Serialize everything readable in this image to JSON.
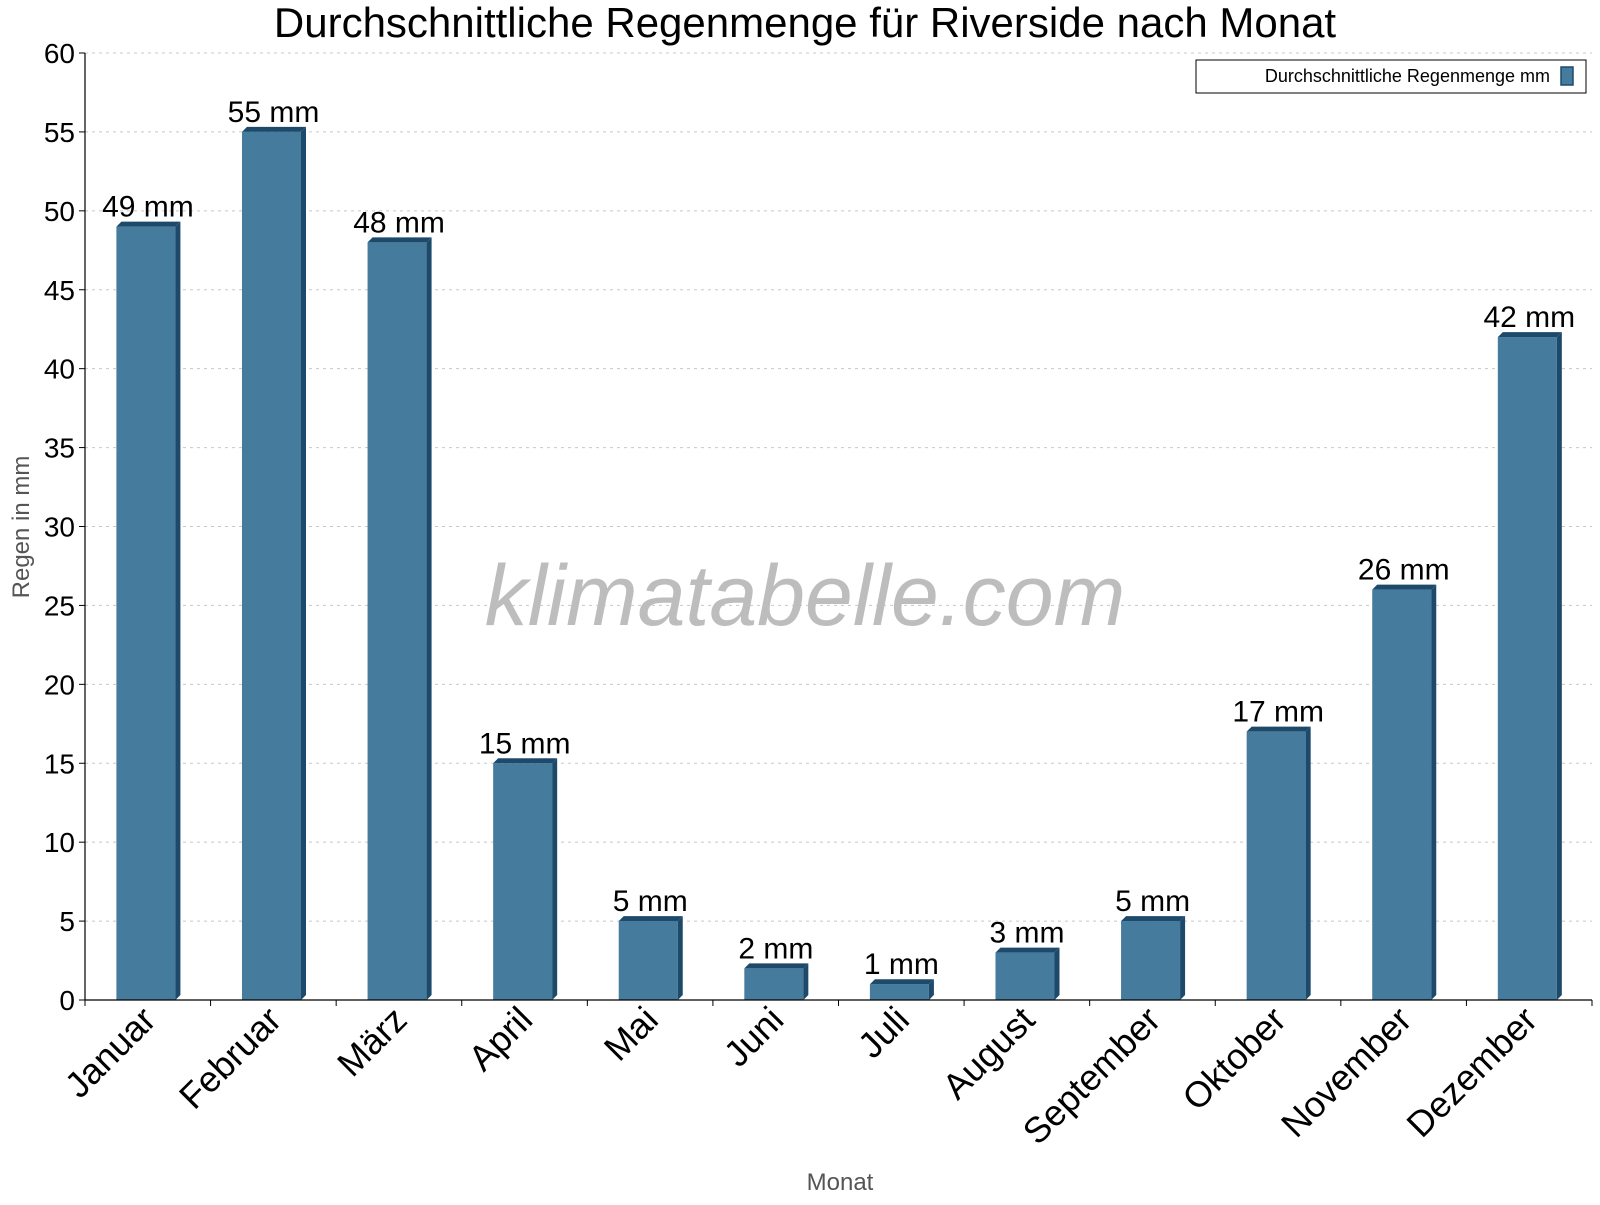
{
  "chart_data": {
    "type": "bar",
    "title": "Durchschnittliche Regenmenge für Riverside nach Monat",
    "xlabel": "Monat",
    "ylabel": "Regen in mm",
    "categories": [
      "Januar",
      "Februar",
      "März",
      "April",
      "Mai",
      "Juni",
      "Juli",
      "August",
      "September",
      "Oktober",
      "November",
      "Dezember"
    ],
    "series": [
      {
        "name": "Durchschnittliche Regenmenge mm",
        "values": [
          49,
          55,
          48,
          15,
          5,
          2,
          1,
          3,
          5,
          17,
          26,
          42
        ],
        "data_labels": [
          "49 mm",
          "55 mm",
          "48 mm",
          "15 mm",
          "5 mm",
          "2 mm",
          "1 mm",
          "3 mm",
          "5 mm",
          "17 mm",
          "26 mm",
          "42 mm"
        ]
      }
    ],
    "ylim": [
      0,
      60
    ],
    "yticks": [
      0,
      5,
      10,
      15,
      20,
      25,
      30,
      35,
      40,
      45,
      50,
      55,
      60
    ],
    "grid": true,
    "legend_position": "top-right",
    "watermark": "klimatabelle.com",
    "colors": {
      "bar": "#457b9d",
      "bar_side": "#1d4a6b",
      "bar_top": "#1d4a6b",
      "grid": "#c8c8c8",
      "axis": "#000000",
      "axis_title": "#555555",
      "watermark": "#bdbdbd"
    }
  }
}
